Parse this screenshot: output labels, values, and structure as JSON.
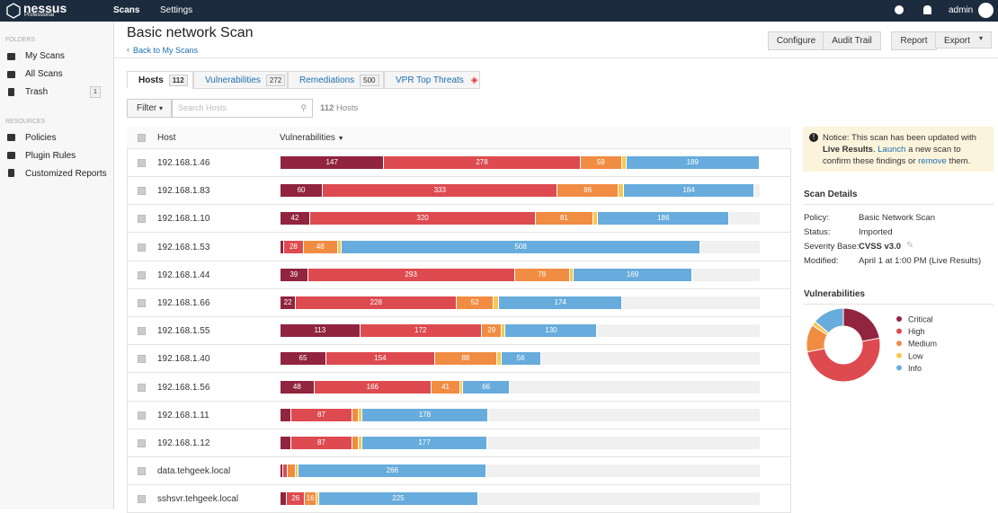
{
  "nav": {
    "logo": "nessus",
    "edition": "Professional",
    "tabs": [
      "Scans",
      "Settings"
    ],
    "user": "admin"
  },
  "sidebar": {
    "folders_heading": "FOLDERS",
    "folders": [
      {
        "label": "My Scans"
      },
      {
        "label": "All Scans"
      },
      {
        "label": "Trash",
        "count": 1
      }
    ],
    "resources_heading": "RESOURCES",
    "resources": [
      "Policies",
      "Plugin Rules",
      "Customized Reports"
    ]
  },
  "page": {
    "title": "Basic network Scan",
    "back_link": "Back to My Scans",
    "buttons": [
      "Configure",
      "Audit Trail",
      "Report",
      "Export"
    ]
  },
  "tabs": [
    {
      "label": "Hosts",
      "count": 112
    },
    {
      "label": "Vulnerabilities",
      "count": 272
    },
    {
      "label": "Remediations",
      "count": 500
    },
    {
      "label": "VPR Top Threats"
    }
  ],
  "filter": {
    "button": "Filter",
    "search_placeholder": "Search Hosts",
    "result_count": 112,
    "result_label": "Hosts"
  },
  "hosts_table": {
    "columns": [
      "Host",
      "Vulnerabilities"
    ],
    "rows": [
      {
        "host": "192.168.1.46",
        "values": [
          147,
          278,
          59,
          6,
          189
        ]
      },
      {
        "host": "192.168.1.83",
        "values": [
          60,
          333,
          86,
          8,
          184
        ]
      },
      {
        "host": "192.168.1.10",
        "values": [
          42,
          320,
          81,
          7,
          186
        ]
      },
      {
        "host": "192.168.1.53",
        "values": [
          5,
          28,
          48,
          6,
          508
        ]
      },
      {
        "host": "192.168.1.44",
        "values": [
          39,
          293,
          78,
          5,
          169
        ]
      },
      {
        "host": "192.168.1.66",
        "values": [
          22,
          228,
          52,
          8,
          174
        ]
      },
      {
        "host": "192.168.1.55",
        "values": [
          113,
          172,
          29,
          5,
          130
        ]
      },
      {
        "host": "192.168.1.40",
        "values": [
          65,
          154,
          88,
          6,
          56
        ]
      },
      {
        "host": "192.168.1.56",
        "values": [
          48,
          166,
          41,
          4,
          66
        ]
      },
      {
        "host": "192.168.1.11",
        "values": [
          15,
          87,
          9,
          5,
          178
        ]
      },
      {
        "host": "192.168.1.12",
        "values": [
          15,
          87,
          9,
          5,
          177
        ]
      },
      {
        "host": "data.tehgeek.local",
        "values": [
          4,
          6,
          12,
          4,
          266
        ]
      },
      {
        "host": "sshsvr.tehgeek.local",
        "values": [
          9,
          26,
          16,
          4,
          225
        ]
      }
    ]
  },
  "notice": {
    "text1": "Notice: This scan has been updated with",
    "bold": "Live Results",
    "text2": ".",
    "link1": "Launch",
    "text3": "a new scan to confirm these findings or",
    "link2": "remove",
    "text4": "them."
  },
  "scan_details": {
    "title": "Scan Details",
    "rows": [
      [
        "Policy:",
        "Basic Network Scan"
      ],
      [
        "Status:",
        "Imported"
      ],
      [
        "Severity Base:",
        "CVSS v3.0"
      ],
      [
        "Modified:",
        "April 1 at 1:00 PM (Live Results)"
      ]
    ]
  },
  "chart_data": {
    "type": "pie",
    "title": "Vulnerabilities",
    "categories": [
      "Critical",
      "High",
      "Medium",
      "Low",
      "Info"
    ],
    "values": [
      22,
      50,
      12,
      2,
      14
    ],
    "colors": [
      "#91243e",
      "#dd4b50",
      "#f18c43",
      "#f8c851",
      "#67acdc"
    ]
  }
}
